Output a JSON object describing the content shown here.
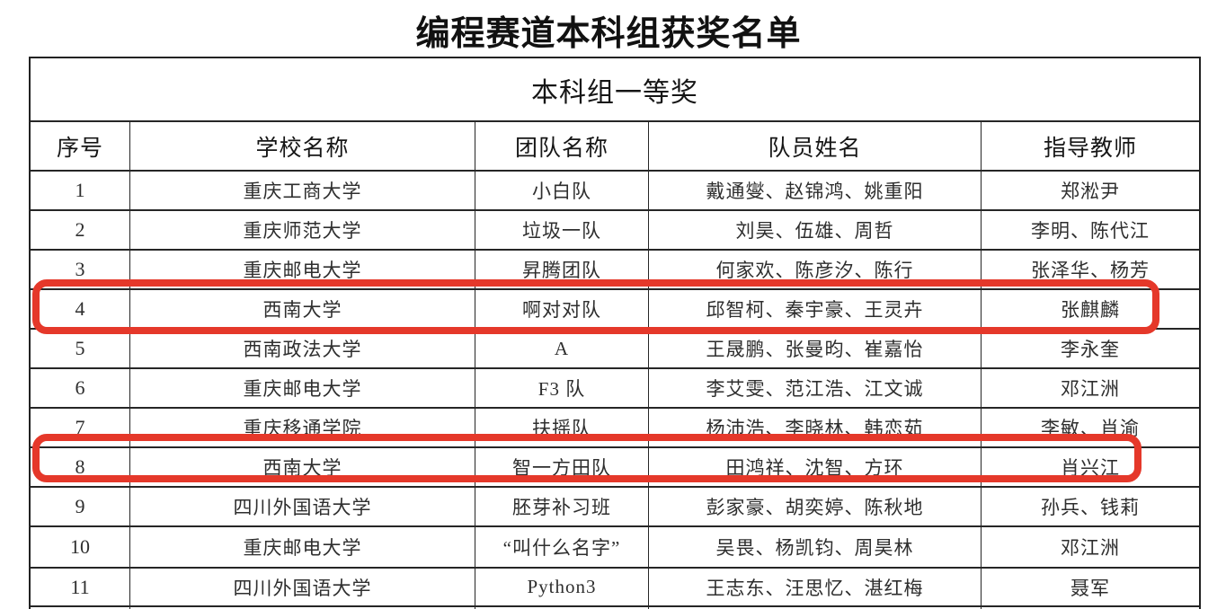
{
  "page_title": "编程赛道本科组获奖名单",
  "table": {
    "section_header": "本科组一等奖",
    "columns": [
      "序号",
      "学校名称",
      "团队名称",
      "队员姓名",
      "指导教师"
    ],
    "rows": [
      [
        "1",
        "重庆工商大学",
        "小白队",
        "戴通燮、赵锦鸿、姚重阳",
        "郑淞尹"
      ],
      [
        "2",
        "重庆师范大学",
        "垃圾一队",
        "刘昊、伍雄、周哲",
        "李明、陈代江"
      ],
      [
        "3",
        "重庆邮电大学",
        "昇腾团队",
        "何家欢、陈彦汐、陈行",
        "张泽华、杨芳"
      ],
      [
        "4",
        "西南大学",
        "啊对对队",
        "邱智柯、秦宇豪、王灵卉",
        "张麒麟"
      ],
      [
        "5",
        "西南政法大学",
        "A",
        "王晟鹏、张曼昀、崔嘉怡",
        "李永奎"
      ],
      [
        "6",
        "重庆邮电大学",
        "F3 队",
        "李艾雯、范江浩、江文诚",
        "邓江洲"
      ],
      [
        "7",
        "重庆移通学院",
        "扶摇队",
        "杨沛浩、李晓林、韩恋茹",
        "李敏、肖渝"
      ],
      [
        "8",
        "西南大学",
        "智一方田队",
        "田鸿祥、沈智、方环",
        "肖兴江"
      ],
      [
        "9",
        "四川外国语大学",
        "胚芽补习班",
        "彭家豪、胡奕婷、陈秋地",
        "孙兵、钱莉"
      ],
      [
        "10",
        "重庆邮电大学",
        "“叫什么名字”",
        "吴畏、杨凯钧、周昊林",
        "邓江洲"
      ],
      [
        "11",
        "四川外国语大学",
        "Python3",
        "王志东、汪思忆、湛红梅",
        "聂军"
      ]
    ],
    "highlighted_row_numbers": [
      "4",
      "8"
    ],
    "highlight_color": "#e5382a"
  }
}
